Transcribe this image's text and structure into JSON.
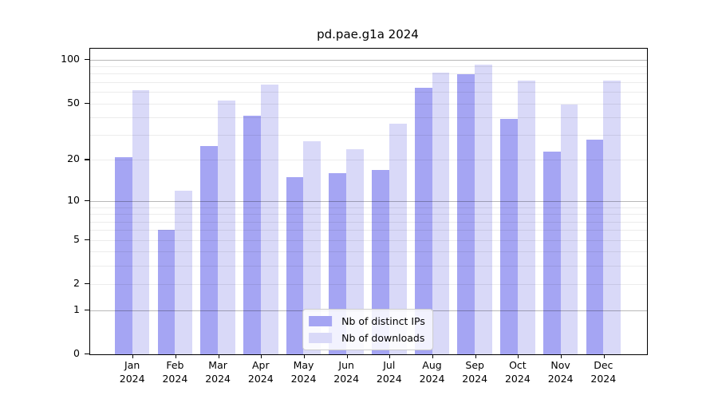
{
  "chart_data": {
    "type": "bar",
    "title": "pd.pae.g1a 2024",
    "categories": [
      "Jan",
      "Feb",
      "Mar",
      "Apr",
      "May",
      "Jun",
      "Jul",
      "Aug",
      "Sep",
      "Oct",
      "Nov",
      "Dec"
    ],
    "x_sub_label": "2024",
    "series": [
      {
        "name": "Nb of distinct IPs",
        "color": "#a5a5f3",
        "values": [
          21,
          6,
          25,
          41,
          15,
          16,
          17,
          64,
          79,
          39,
          23,
          28
        ]
      },
      {
        "name": "Nb of downloads",
        "color": "#d9d9f8",
        "values": [
          62,
          12,
          52,
          67,
          27,
          24,
          36,
          82,
          93,
          72,
          49,
          72
        ]
      }
    ],
    "yscale": "log1p",
    "ylim": [
      0,
      119
    ],
    "yticks": [
      0,
      1,
      2,
      5,
      10,
      20,
      50,
      100
    ],
    "minor_grid_values": [
      2,
      3,
      4,
      5,
      6,
      7,
      8,
      9,
      20,
      30,
      40,
      50,
      60,
      70,
      80,
      90
    ],
    "major_grid_values": [
      1,
      10,
      100
    ],
    "grid": "on",
    "legend_position": "lower center"
  }
}
